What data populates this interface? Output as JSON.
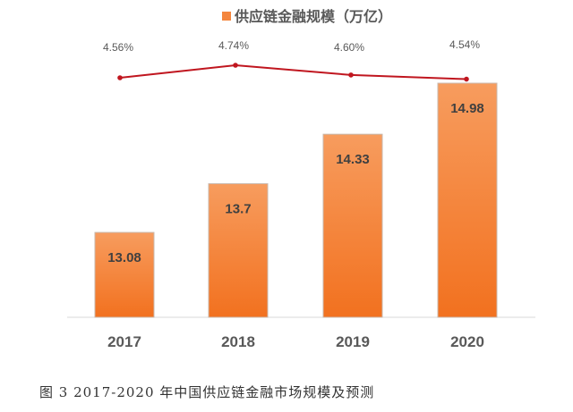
{
  "chart_data": {
    "type": "bar",
    "categories": [
      "2017",
      "2018",
      "2019",
      "2020"
    ],
    "series": [
      {
        "name": "供应链金融规模（万亿）",
        "type": "bar",
        "values": [
          13.08,
          13.7,
          14.33,
          14.98
        ],
        "color": "#f47c2c"
      },
      {
        "type": "line",
        "values": [
          4.56,
          4.74,
          4.6,
          4.54
        ],
        "labels": [
          "4.56%",
          "4.74%",
          "4.60%",
          "4.54%"
        ],
        "color": "#c0161f"
      }
    ],
    "legend": {
      "label": "供应链金融规模（万亿）",
      "placement": "top"
    },
    "ylim": [
      12,
      15.2
    ],
    "grid": false
  },
  "caption": "图 3   2017-2020 年中国供应链金融市场规模及预测"
}
